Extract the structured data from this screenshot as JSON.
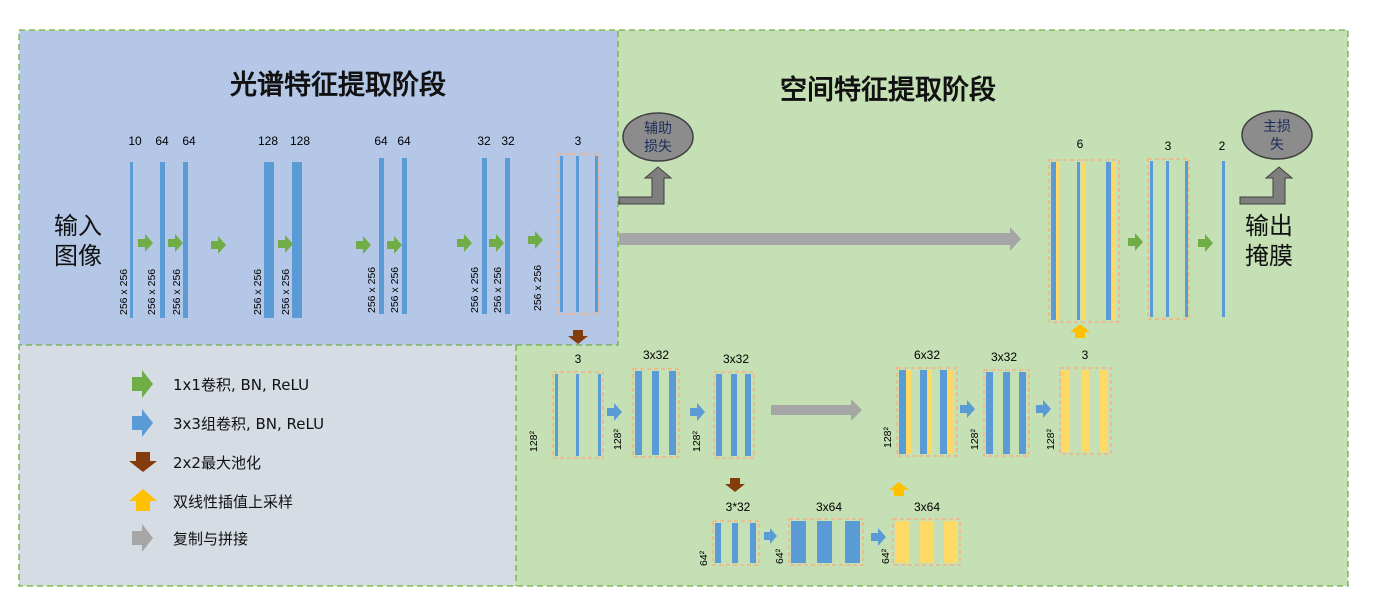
{
  "titles": {
    "spectral": "光谱特征提取阶段",
    "spatial": "空间特征提取阶段"
  },
  "input_label": [
    "输入",
    "图像"
  ],
  "output_label": [
    "输出",
    "掩膜"
  ],
  "aux_loss": [
    "辅助",
    "损失"
  ],
  "main_loss": [
    "主损",
    "失"
  ],
  "top_channels": [
    "10",
    "64",
    "64",
    "128",
    "128",
    "64",
    "64",
    "32",
    "32",
    "3"
  ],
  "top_sizes": [
    "256 x 256",
    "256 x 256",
    "256 x 256",
    "256 x 256",
    "256 x 256",
    "256 x 256",
    "256 x 256",
    "256 x 256",
    "256 x 256",
    "256 x 256"
  ],
  "decoder_top_channels": [
    "6",
    "3",
    "2"
  ],
  "mid_channels": [
    "3",
    "3x32",
    "3x32",
    "6x32",
    "3x32",
    "3"
  ],
  "mid_sizes": [
    "128²",
    "128²",
    "128²",
    "128²",
    "128²",
    "128²"
  ],
  "low_channels": [
    "3*32",
    "3x64",
    "3x64"
  ],
  "low_sizes": [
    "64²",
    "64²",
    "64²"
  ],
  "legend": [
    {
      "label": "1x1卷积, BN, ReLU",
      "icon": "green-arrow-icon"
    },
    {
      "label": "3x3组卷积, BN, ReLU",
      "icon": "blue-arrow-icon"
    },
    {
      "label": "2x2最大池化",
      "icon": "brown-arrow-icon"
    },
    {
      "label": "双线性插值上采样",
      "icon": "yellow-arrow-icon"
    },
    {
      "label": "复制与拼接",
      "icon": "gray-arrow-icon"
    }
  ],
  "colors": {
    "spectral_bg": "#b4c7e7",
    "spatial_bg": "#c5e0b4",
    "legend_bg": "#d6dce4",
    "blue": "#5b9bd5",
    "yellow": "#ffd966",
    "green": "#70ad47",
    "brown": "#843c0c",
    "orange": "#ffc000",
    "gray": "#a6a6a6",
    "dash_border": "#f4b183"
  }
}
